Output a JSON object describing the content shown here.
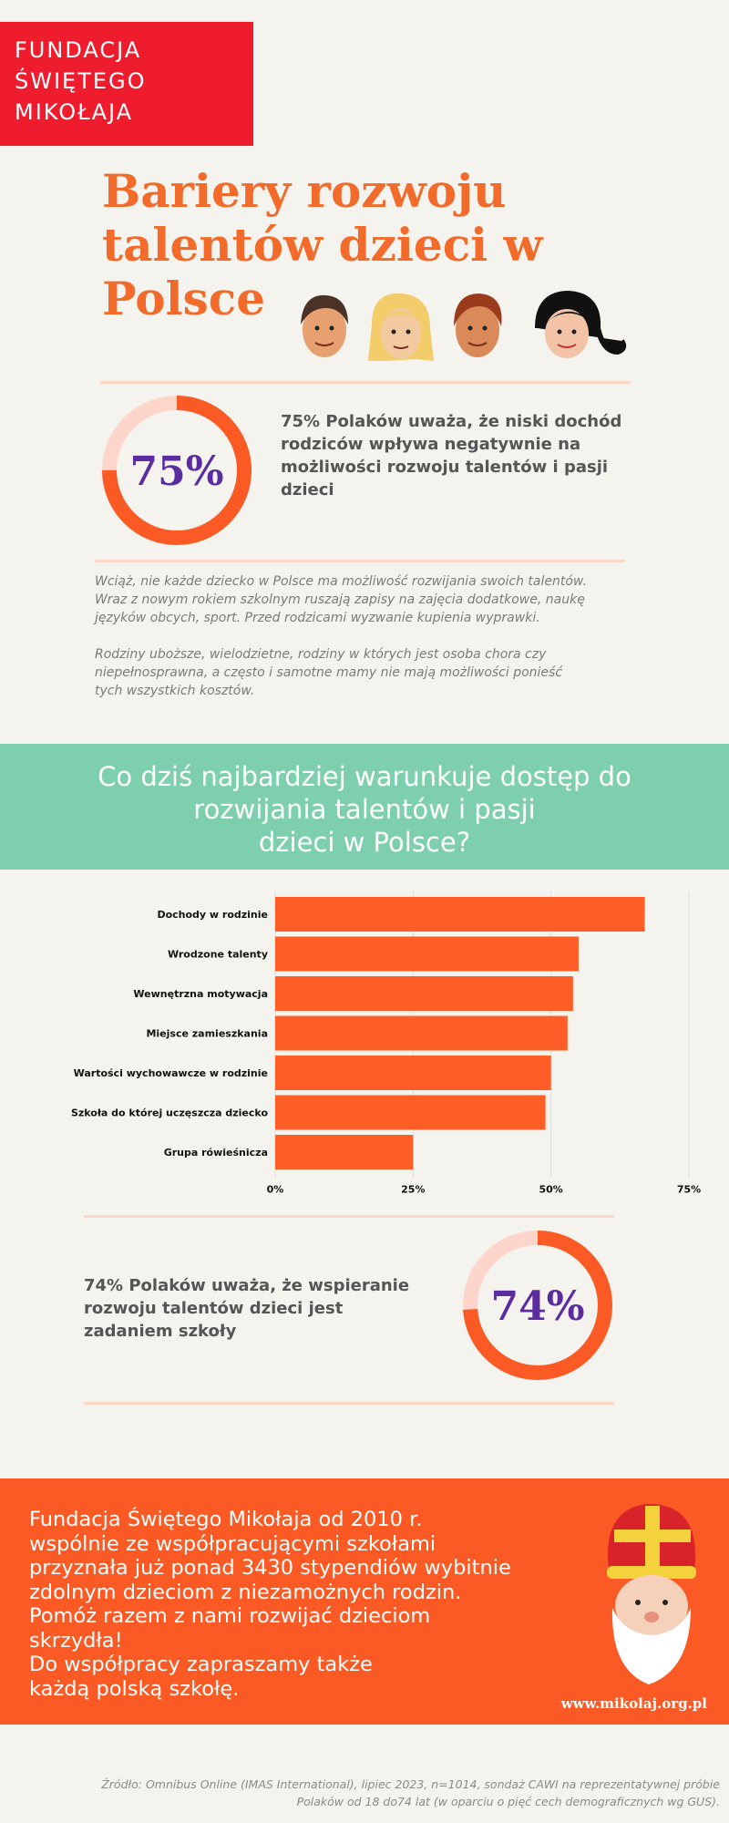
{
  "logo": {
    "lines": [
      "FUNDACJA",
      "ŚWIĘTEGO",
      "MIKOŁAJA"
    ],
    "color": "#ee1c2d"
  },
  "title": {
    "lines": [
      "Bariery rozwoju",
      "talentów dzieci w",
      "Polsce"
    ]
  },
  "stat1": {
    "value": 75,
    "label": "75%",
    "lines": [
      "75% Polaków uważa, że niski dochód",
      "rodziców wpływa negatywnie na",
      "możliwości rozwoju talentów i pasji",
      "dzieci"
    ]
  },
  "description": {
    "p1": [
      "Wciąż, nie każde dziecko w Polsce ma możliwość rozwijania swoich talentów.",
      "Wraz z nowym rokiem szkolnym ruszają zapisy na zajęcia dodatkowe, naukę",
      "języków obcych, sport. Przed rodzicami wyzwanie kupienia wyprawki."
    ],
    "p2": [
      "Rodziny uboższe, wielodzietne, rodziny w których jest osoba chora czy",
      "niepełnosprawna, a często i samotne mamy nie mają możliwości ponieść",
      "tych wszystkich kosztów."
    ]
  },
  "question": {
    "lines": [
      "Co dziś najbardziej warunkuje dostęp do",
      "rozwijania talentów i pasji",
      "dzieci w Polsce?"
    ]
  },
  "chart_data": {
    "type": "bar",
    "orientation": "horizontal",
    "categories": [
      "Dochody w rodzinie",
      "Wrodzone talenty",
      "Wewnętrzna motywacja",
      "Miejsce zamieszkania",
      "Wartości wychowawcze w rodzinie",
      "Szkoła do której uczęszcza dziecko",
      "Grupa rówieśnicza"
    ],
    "values": [
      67,
      55,
      54,
      53,
      50,
      49,
      25
    ],
    "xlim": [
      0,
      75
    ],
    "ticks": [
      0,
      25,
      50,
      75
    ],
    "tick_labels": [
      "0%",
      "25%",
      "50%",
      "75%"
    ],
    "color": "#ff5f27",
    "grid": true,
    "title": "",
    "xlabel": "",
    "ylabel": ""
  },
  "stat2": {
    "value": 74,
    "label": "74%",
    "lines": [
      "74% Polaków uważa, że wspieranie",
      "rozwoju talentów dzieci jest",
      "zadaniem szkoły"
    ]
  },
  "colors": {
    "orange": "#fb5a24",
    "ring_light": "#fdd5ca",
    "purple": "#5b2c9f",
    "teal": "#7dcfae"
  },
  "footer": {
    "lines": [
      "Fundacja Świętego Mikołaja od 2010 r.",
      "wspólnie ze współpracującymi szkołami",
      "przyznała już ponad 3430 stypendiów wybitnie",
      "zdolnym dzieciom z niezamożnych rodzin.",
      "Pomóż razem z nami rozwijać dzieciom",
      "skrzydła!",
      "Do współpracy zapraszamy także",
      "każdą polską szkołę."
    ],
    "url": "www.mikolaj.org.pl"
  },
  "source": {
    "lines": [
      "Źródło: Omnibus Online (IMAS International), lipiec 2023, n=1014, sondaż CAWI na reprezentatywnej próbie",
      "Polaków od 18 do74 lat (w oparciu o pięć cech demograficznych wg GUS)."
    ]
  }
}
